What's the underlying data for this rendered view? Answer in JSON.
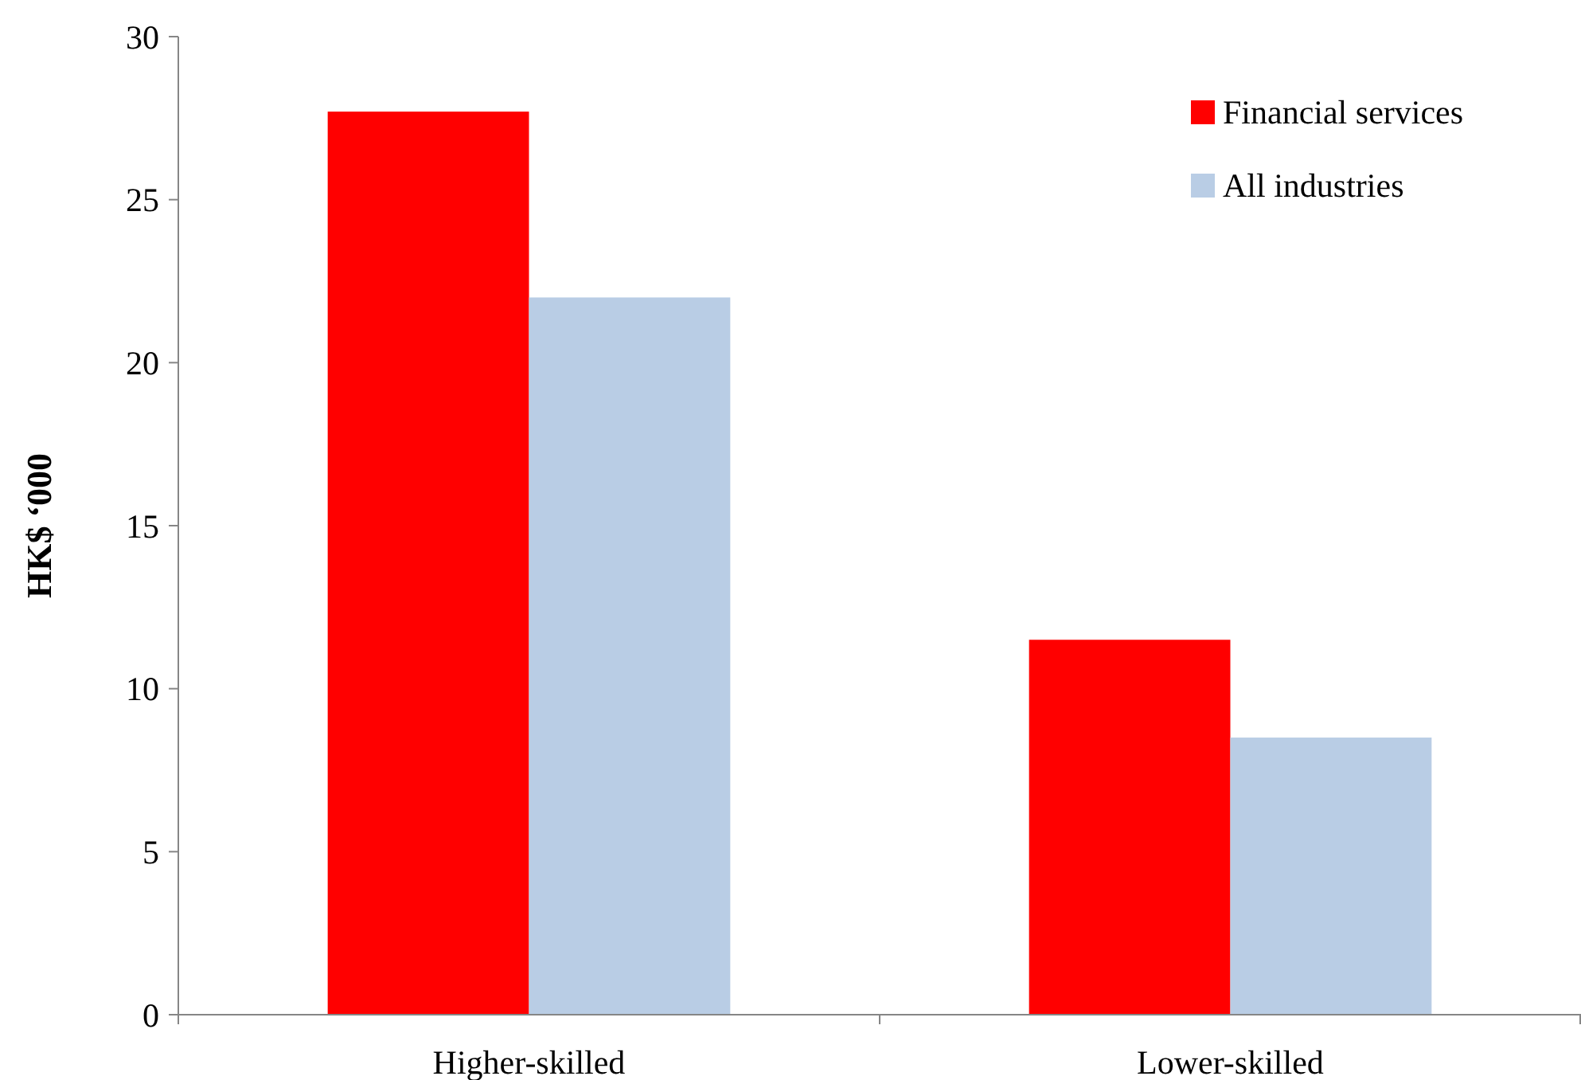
{
  "chart_data": {
    "type": "bar",
    "ylabel": "HK$ ‘000",
    "categories": [
      "Higher-skilled",
      "Lower-skilled"
    ],
    "series": [
      {
        "name": "Financial services",
        "color": "#ff0000",
        "values": [
          27.7,
          11.5
        ]
      },
      {
        "name": "All industries",
        "color": "#b9cde5",
        "values": [
          22.0,
          8.5
        ]
      }
    ],
    "ylim": [
      0,
      30
    ],
    "yticks": [
      0,
      5,
      10,
      15,
      20,
      25,
      30
    ],
    "grid": false,
    "legend": "top right"
  }
}
